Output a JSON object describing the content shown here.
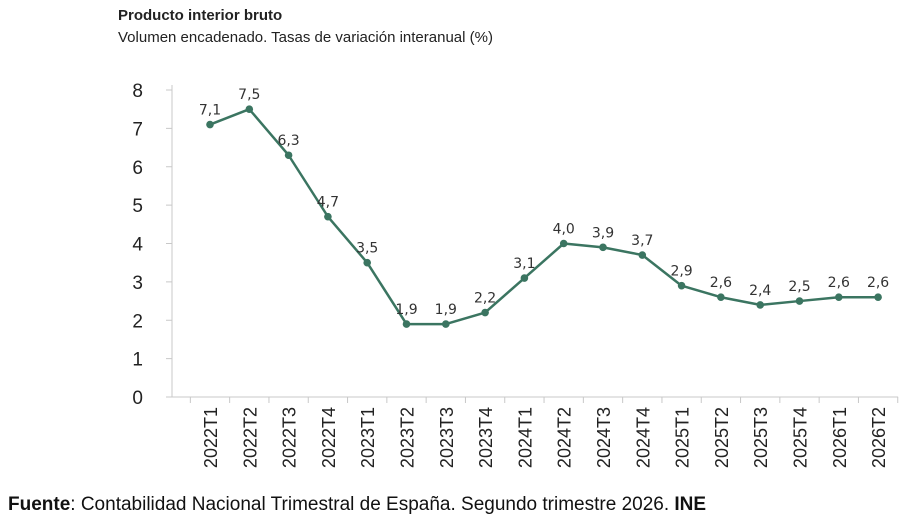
{
  "chart_data": {
    "type": "line",
    "title": "Producto interior bruto",
    "subtitle": "Volumen encadenado. Tasas de variación interanual (%)",
    "xlabel": "",
    "ylabel": "",
    "ylim": [
      0,
      8
    ],
    "yticks": [
      "0",
      "1",
      "2",
      "3",
      "4",
      "5",
      "6",
      "7",
      "8"
    ],
    "grid": false,
    "categories": [
      "2022T1",
      "2022T2",
      "2022T3",
      "2022T4",
      "2023T1",
      "2023T2",
      "2023T3",
      "2023T4",
      "2024T1",
      "2024T2",
      "2024T3",
      "2024T4",
      "2025T1",
      "2025T2",
      "2025T3",
      "2025T4",
      "2026T1",
      "2026T2"
    ],
    "series": [
      {
        "values": [
          7.1,
          7.5,
          6.3,
          4.7,
          3.5,
          1.9,
          1.9,
          2.2,
          3.1,
          4.0,
          3.9,
          3.7,
          2.9,
          2.6,
          2.4,
          2.5,
          2.6,
          2.6
        ],
        "labels": [
          "7,1",
          "7,5",
          "6,3",
          "4,7",
          "3,5",
          "1,9",
          "1,9",
          "2,2",
          "3,1",
          "4,0",
          "3,9",
          "3,7",
          "2,9",
          "2,6",
          "2,4",
          "2,5",
          "2,6",
          "2,6"
        ],
        "color": "#3b7561"
      }
    ]
  },
  "source": {
    "label": "Fuente",
    "text": ": Contabilidad Nacional Trimestral de España. Segundo trimestre 2026. ",
    "org": "INE"
  },
  "colors": {
    "axis": "#c8c8c8",
    "text": "#222222",
    "line": "#3b7561"
  }
}
